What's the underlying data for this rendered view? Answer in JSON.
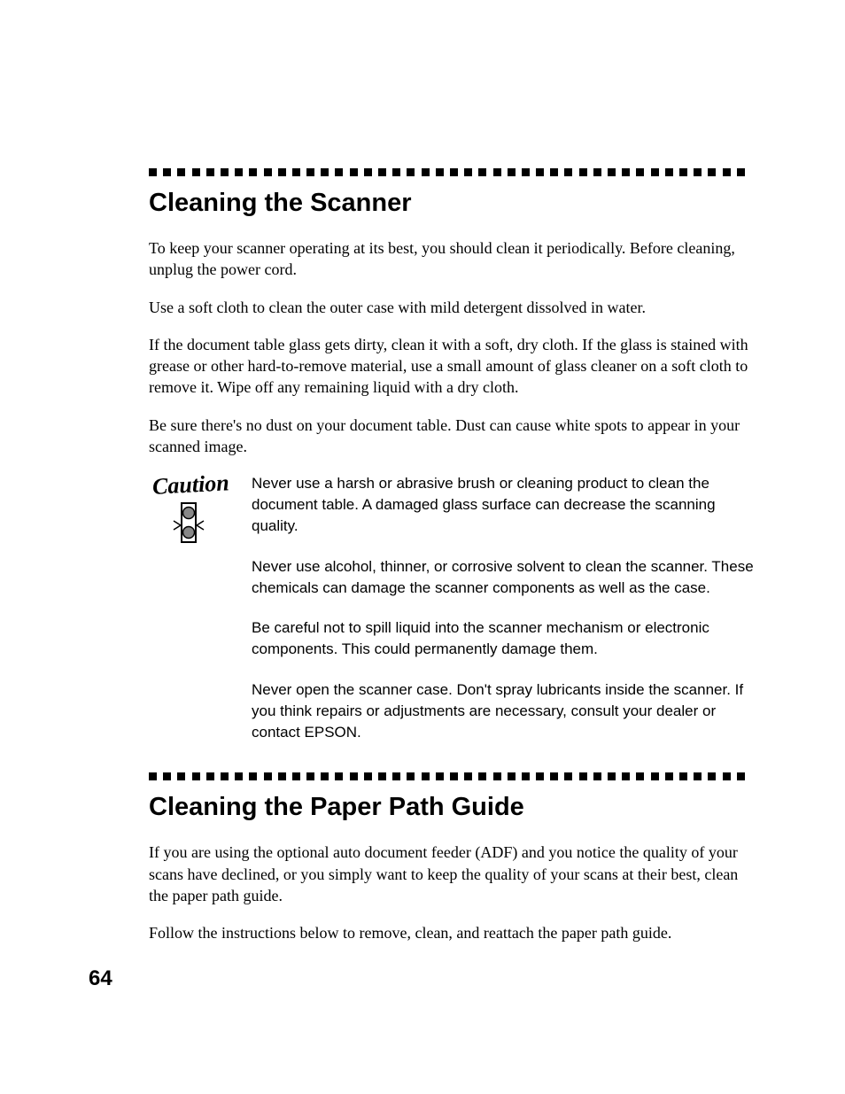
{
  "page_number": "64",
  "divider": {
    "square_count": 42,
    "square_size": 9,
    "gap": 7.2,
    "color": "#000000"
  },
  "section1": {
    "heading": "Cleaning the Scanner",
    "paragraphs": [
      "To keep your scanner operating at its best, you should clean it periodically. Before cleaning, unplug the power cord.",
      "Use a soft cloth to clean the outer case with mild detergent dissolved in water.",
      "If the document table glass gets dirty, clean it with a soft, dry cloth. If the glass is stained with grease or other hard-to-remove material, use a small amount of glass cleaner on a soft cloth to remove it. Wipe off any remaining liquid with a dry cloth.",
      "Be sure there's no dust on your document table. Dust can cause white spots to appear in your scanned image."
    ],
    "caution": {
      "label": "Caution",
      "items": [
        "Never use a harsh or abrasive brush or cleaning product to clean the document table. A damaged glass surface can decrease the scanning quality.",
        "Never use alcohol, thinner, or corrosive solvent to clean the scanner. These chemicals can damage the scanner components as well as the case.",
        "Be careful not to spill liquid into the scanner mechanism or electronic components. This could permanently damage them.",
        "Never open the scanner case. Don't spray lubricants inside the scanner. If you think repairs or adjustments are necessary, consult your dealer or contact EPSON."
      ]
    }
  },
  "section2": {
    "heading": "Cleaning the Paper Path Guide",
    "paragraphs": [
      "If you are using the optional auto document feeder (ADF) and you notice the quality of your scans have declined, or you simply want to keep the quality of your scans at their best, clean the paper path guide.",
      "Follow the instructions below to remove, clean, and reattach the paper path guide."
    ]
  },
  "typography": {
    "heading_font": "Arial",
    "heading_size_pt": 22,
    "heading_weight": 700,
    "body_font": "Georgia",
    "body_size_pt": 13.5,
    "caution_body_font": "Arial",
    "caution_body_size_pt": 13,
    "caution_label_font": "Brush Script",
    "page_number_size_pt": 18,
    "text_color": "#000000",
    "background_color": "#ffffff"
  }
}
